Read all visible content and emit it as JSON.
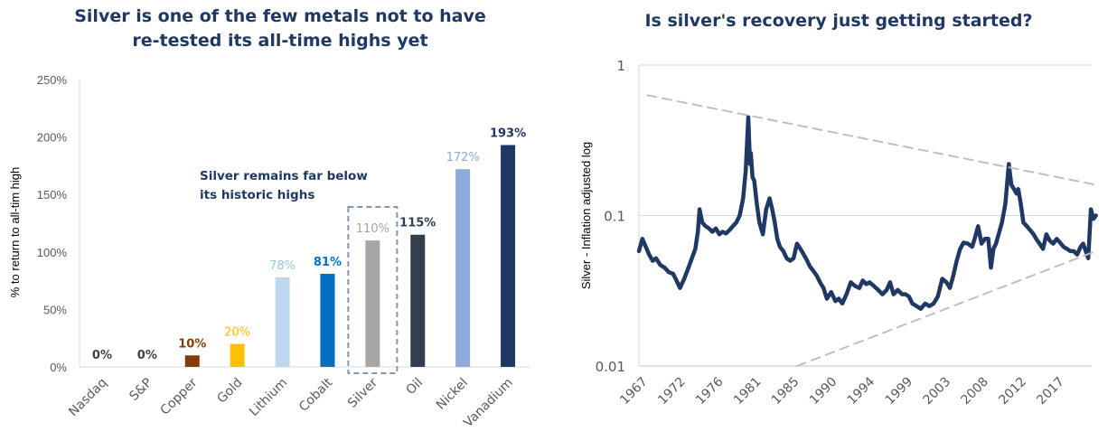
{
  "chart_data": [
    {
      "type": "bar",
      "title": "Silver is one of the few metals not to have re-tested its all-time highs yet",
      "title_lines": [
        "Silver is one of the few metals not to have",
        "re-tested its all-time highs yet"
      ],
      "xlabel": "",
      "ylabel": "% to return to all-tim high",
      "ylim": [
        0,
        250
      ],
      "yticks": [
        0,
        50,
        100,
        150,
        200,
        250
      ],
      "ytick_labels": [
        "0%",
        "50%",
        "100%",
        "150%",
        "200%",
        "250%"
      ],
      "categories": [
        "Nasdaq",
        "S&P",
        "Copper",
        "Gold",
        "Lithium",
        "Cobalt",
        "Silver",
        "Oil",
        "Nickel",
        "Vanadium"
      ],
      "values": [
        0,
        0,
        10,
        20,
        78,
        81,
        110,
        115,
        172,
        193
      ],
      "data_labels": [
        "0%",
        "0%",
        "10%",
        "20%",
        "78%",
        "81%",
        "110%",
        "115%",
        "172%",
        "193%"
      ],
      "colors": [
        "#404040",
        "#404040",
        "#843c0c",
        "#ffc000",
        "#bdd7ee",
        "#0070c0",
        "#a6a6a6",
        "#323f4f",
        "#8faadc",
        "#1f3864"
      ],
      "label_colors": [
        "#404040",
        "#404040",
        "#843c0c",
        "#ffc000",
        "#9dc3e6",
        "#0070c0",
        "#a6a6a6",
        "#323f4f",
        "#8faadc",
        "#1f3864"
      ],
      "annotation": {
        "lines": [
          "Silver remains far below",
          "its historic highs"
        ],
        "highlight_category": "Silver",
        "color": "#1f3864"
      },
      "grid": false
    },
    {
      "type": "line",
      "title": "Is silver's recovery just getting started?",
      "xlabel": "",
      "ylabel": "Silver - Inflation adjusted log",
      "yscale": "log",
      "ylim": [
        0.01,
        1
      ],
      "yticks": [
        0.01,
        0.1,
        1
      ],
      "ytick_labels": [
        "0.01",
        "0.1",
        "1"
      ],
      "xlim": [
        1967,
        2020
      ],
      "xtick_labels": [
        "1967",
        "1972",
        "1976",
        "1981",
        "1985",
        "1990",
        "1994",
        "1999",
        "2003",
        "2008",
        "2012",
        "2017"
      ],
      "xtick_values": [
        1967,
        1972,
        1976,
        1981,
        1985,
        1990,
        1994,
        1999,
        2003,
        2008,
        2012,
        2017
      ],
      "series": [
        {
          "name": "Silver - Inflation adjusted",
          "color": "#1f3864",
          "x": [
            1967.0,
            1967.4,
            1967.8,
            1968.2,
            1968.6,
            1969.0,
            1969.5,
            1970.0,
            1970.5,
            1971.0,
            1971.4,
            1971.8,
            1972.3,
            1972.8,
            1973.2,
            1973.6,
            1973.9,
            1974.1,
            1974.4,
            1974.8,
            1975.2,
            1975.6,
            1976.0,
            1976.4,
            1976.8,
            1977.2,
            1977.6,
            1978.0,
            1978.4,
            1978.8,
            1979.2,
            1979.5,
            1979.8,
            1980.0,
            1980.1,
            1980.3,
            1980.5,
            1980.8,
            1981.1,
            1981.5,
            1981.9,
            1982.3,
            1982.6,
            1982.9,
            1983.2,
            1983.5,
            1983.9,
            1984.3,
            1984.7,
            1985.1,
            1985.5,
            1985.9,
            1986.3,
            1986.7,
            1987.0,
            1987.4,
            1987.8,
            1988.2,
            1988.6,
            1989.0,
            1989.5,
            1990.0,
            1990.4,
            1990.8,
            1991.3,
            1991.8,
            1992.3,
            1992.8,
            1993.2,
            1993.6,
            1994.0,
            1994.5,
            1995.0,
            1995.5,
            1996.0,
            1996.4,
            1996.8,
            1997.3,
            1997.8,
            1998.2,
            1998.6,
            1999.0,
            1999.5,
            2000.0,
            2000.5,
            2001.0,
            2001.5,
            2002.0,
            2002.5,
            2003.0,
            2003.4,
            2003.8,
            2004.2,
            2004.6,
            2005.0,
            2005.5,
            2006.0,
            2006.3,
            2006.7,
            2007.1,
            2007.5,
            2007.9,
            2008.2,
            2008.5,
            2008.8,
            2009.1,
            2009.5,
            2009.9,
            2010.3,
            2010.6,
            2010.9,
            2011.2,
            2011.4,
            2011.7,
            2012.0,
            2012.4,
            2012.8,
            2013.2,
            2013.5,
            2013.9,
            2014.3,
            2014.7,
            2015.1,
            2015.5,
            2015.9,
            2016.3,
            2016.7,
            2017.1,
            2017.5,
            2017.9,
            2018.3,
            2018.7,
            2019.0,
            2019.3,
            2019.6,
            2019.9,
            2020.2,
            2020.5
          ],
          "y": [
            0.058,
            0.07,
            0.062,
            0.055,
            0.05,
            0.052,
            0.047,
            0.045,
            0.042,
            0.041,
            0.037,
            0.033,
            0.038,
            0.045,
            0.052,
            0.06,
            0.078,
            0.11,
            0.09,
            0.085,
            0.082,
            0.078,
            0.082,
            0.075,
            0.078,
            0.076,
            0.08,
            0.085,
            0.09,
            0.1,
            0.13,
            0.2,
            0.45,
            0.22,
            0.26,
            0.18,
            0.17,
            0.12,
            0.09,
            0.075,
            0.11,
            0.13,
            0.11,
            0.09,
            0.07,
            0.062,
            0.058,
            0.052,
            0.05,
            0.052,
            0.065,
            0.06,
            0.055,
            0.05,
            0.046,
            0.043,
            0.04,
            0.036,
            0.033,
            0.028,
            0.031,
            0.027,
            0.028,
            0.026,
            0.03,
            0.036,
            0.034,
            0.033,
            0.037,
            0.035,
            0.036,
            0.034,
            0.032,
            0.03,
            0.032,
            0.036,
            0.03,
            0.032,
            0.03,
            0.03,
            0.029,
            0.026,
            0.025,
            0.024,
            0.026,
            0.025,
            0.026,
            0.029,
            0.038,
            0.036,
            0.033,
            0.04,
            0.05,
            0.06,
            0.066,
            0.065,
            0.062,
            0.07,
            0.085,
            0.065,
            0.07,
            0.07,
            0.045,
            0.06,
            0.065,
            0.075,
            0.09,
            0.12,
            0.22,
            0.16,
            0.15,
            0.14,
            0.15,
            0.12,
            0.09,
            0.085,
            0.08,
            0.075,
            0.07,
            0.065,
            0.06,
            0.075,
            0.068,
            0.065,
            0.07,
            0.066,
            0.062,
            0.06,
            0.058,
            0.058,
            0.055,
            0.062,
            0.065,
            0.058,
            0.052,
            0.11,
            0.095,
            0.1
          ],
          "line_style": "solid"
        },
        {
          "name": "Upper trendline",
          "color": "#bfbfbf",
          "x": [
            1968,
            2020.5
          ],
          "y": [
            0.63,
            0.16
          ],
          "line_style": "dashed"
        },
        {
          "name": "Lower trendline",
          "color": "#bfbfbf",
          "x": [
            1985.5,
            2020.5
          ],
          "y": [
            0.01,
            0.058
          ],
          "line_style": "dashed"
        }
      ],
      "grid": true
    }
  ]
}
